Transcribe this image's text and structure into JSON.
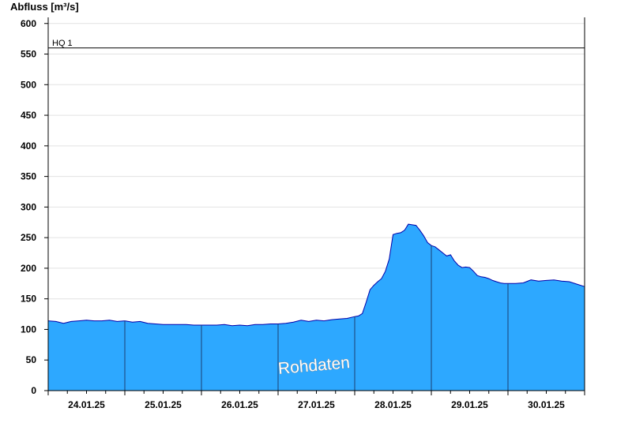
{
  "chart_data": {
    "type": "area",
    "ylabel": "Abfluss [m³/s]",
    "xlabel": "",
    "title": "",
    "ylim": [
      0,
      610
    ],
    "yticks": [
      0,
      50,
      100,
      150,
      200,
      250,
      300,
      350,
      400,
      450,
      500,
      550,
      600
    ],
    "grid": true,
    "legend": "none",
    "categories": [
      "24.01.25",
      "25.01.25",
      "26.01.25",
      "27.01.25",
      "28.01.25",
      "29.01.25",
      "30.01.25"
    ],
    "x_range_days": [
      0,
      7
    ],
    "reference_line": {
      "label": "HQ 1",
      "value": 560
    },
    "watermark": "Rohdaten",
    "colors": {
      "fill": "#2da8ff",
      "line": "#0000aa",
      "grid": "#e2e2e2",
      "axis": "#000000",
      "day_line": "#1a3f73"
    },
    "series": [
      {
        "x": [
          0.0,
          0.1,
          0.2,
          0.3,
          0.4,
          0.5,
          0.6,
          0.7,
          0.8,
          0.9,
          1.0,
          1.1,
          1.2,
          1.3,
          1.4,
          1.5,
          1.6,
          1.7,
          1.8,
          1.9,
          2.0,
          2.1,
          2.2,
          2.3,
          2.4,
          2.5,
          2.6,
          2.7,
          2.8,
          2.9,
          3.0,
          3.1,
          3.2,
          3.3,
          3.4,
          3.5,
          3.6,
          3.7,
          3.8,
          3.9,
          4.0,
          4.05,
          4.1,
          4.15,
          4.2,
          4.25,
          4.3,
          4.35,
          4.4,
          4.45,
          4.5,
          4.55,
          4.6,
          4.65,
          4.7,
          4.75,
          4.8,
          4.85,
          4.9,
          4.95,
          5.0,
          5.05,
          5.1,
          5.15,
          5.2,
          5.25,
          5.3,
          5.35,
          5.4,
          5.45,
          5.5,
          5.55,
          5.6,
          5.65,
          5.7,
          5.75,
          5.8,
          5.85,
          5.9,
          5.95,
          6.0,
          6.1,
          6.2,
          6.3,
          6.4,
          6.5,
          6.6,
          6.7,
          6.8,
          6.9,
          7.0
        ],
        "values": [
          114,
          113,
          110,
          113,
          114,
          115,
          114,
          114,
          115,
          113,
          114,
          112,
          113,
          110,
          109,
          108,
          108,
          108,
          108,
          107,
          107,
          107,
          107,
          108,
          106,
          107,
          106,
          108,
          108,
          109,
          109,
          110,
          112,
          115,
          113,
          115,
          114,
          116,
          117,
          118,
          121,
          122,
          126,
          145,
          165,
          172,
          178,
          183,
          195,
          215,
          255,
          257,
          258,
          262,
          272,
          271,
          270,
          262,
          253,
          242,
          237,
          235,
          230,
          225,
          220,
          222,
          212,
          205,
          201,
          202,
          201,
          195,
          188,
          186,
          185,
          183,
          180,
          178,
          176,
          175,
          175,
          175,
          176,
          181,
          179,
          180,
          181,
          179,
          178,
          174,
          170
        ]
      }
    ]
  }
}
